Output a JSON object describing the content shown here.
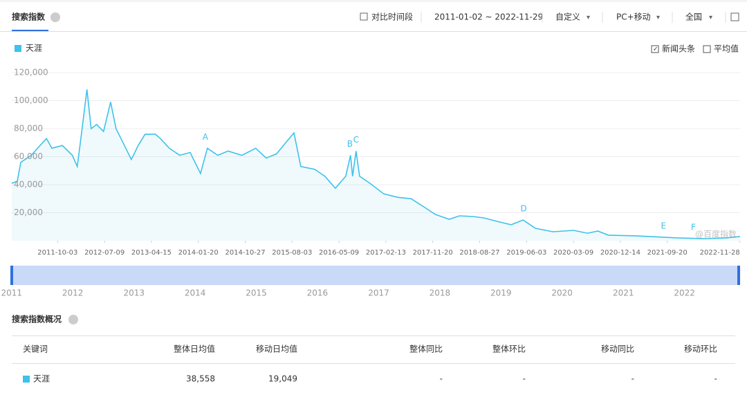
{
  "header": {
    "title": "搜索指数",
    "compare": "对比时间段",
    "date_range": "2011-01-02 ~ 2022-11-29",
    "custom": "自定义",
    "device": "PC+移动",
    "region": "全国"
  },
  "options": {
    "news": "新闻头条",
    "average": "平均值"
  },
  "chart_data": {
    "type": "line",
    "series": [
      {
        "name": "天涯",
        "color": "#3ec1ea",
        "x": [
          "2011-01-02",
          "2011-02-04",
          "2011-02-25",
          "2011-04-28",
          "2011-07-28",
          "2011-08-30",
          "2011-10-31",
          "2011-12-30",
          "2012-01-28",
          "2012-02-22",
          "2012-03-26",
          "2012-04-20",
          "2012-05-23",
          "2012-07-03",
          "2012-08-14",
          "2012-09-16",
          "2012-10-15",
          "2012-12-16",
          "2013-01-26",
          "2013-03-08",
          "2013-05-09",
          "2013-06-07",
          "2013-07-31",
          "2013-10-01",
          "2013-12-02",
          "2014-02-02",
          "2014-03-15",
          "2014-05-16",
          "2014-07-17",
          "2014-10-07",
          "2014-12-29",
          "2015-03-01",
          "2015-05-02",
          "2015-07-03",
          "2015-08-14",
          "2015-09-24",
          "2015-12-16",
          "2016-02-15",
          "2016-04-17",
          "2016-06-18",
          "2016-07-17",
          "2016-07-29",
          "2016-08-19",
          "2016-09-09",
          "2016-11-10",
          "2017-01-31",
          "2017-04-23",
          "2017-07-14",
          "2017-10-04",
          "2017-12-05",
          "2018-02-26",
          "2018-04-29",
          "2018-07-20",
          "2018-09-20",
          "2018-12-11",
          "2019-03-03",
          "2019-05-13",
          "2019-07-26",
          "2019-11-07",
          "2020-03-10",
          "2020-06-01",
          "2020-08-02",
          "2020-10-03",
          "2021-03-17",
          "2021-08-29",
          "2021-11-20",
          "2022-05-04",
          "2022-09-05",
          "2022-11-29"
        ],
        "values": [
          41000,
          42500,
          56000,
          61000,
          73000,
          66000,
          68000,
          61000,
          53000,
          76000,
          108000,
          80000,
          83000,
          78000,
          99000,
          80000,
          73000,
          58000,
          68000,
          76000,
          76000,
          73000,
          66000,
          61000,
          63000,
          48000,
          66000,
          61000,
          64000,
          61000,
          66000,
          59000,
          62000,
          71000,
          77000,
          53000,
          51000,
          46000,
          37500,
          46000,
          61000,
          46000,
          64000,
          46000,
          41000,
          33500,
          31000,
          30000,
          23700,
          18800,
          15300,
          17800,
          17300,
          16300,
          13800,
          11400,
          14800,
          8900,
          6400,
          7400,
          5400,
          6900,
          4000,
          3500,
          2500,
          2000,
          1500,
          2000,
          3000
        ]
      }
    ],
    "xlim": [
      "2011-01-02",
      "2022-11-29"
    ],
    "xticks": [
      "2011-10-03",
      "2012-07-09",
      "2013-04-15",
      "2014-01-20",
      "2014-10-27",
      "2015-08-03",
      "2016-05-09",
      "2017-02-13",
      "2017-11-20",
      "2018-08-27",
      "2019-06-03",
      "2020-03-09",
      "2020-12-14",
      "2021-09-20",
      "2022-11-28"
    ],
    "ylim": [
      0,
      120000
    ],
    "yticks": [
      {
        "value": 20000,
        "label": "20,000"
      },
      {
        "value": 40000,
        "label": "40,000"
      },
      {
        "value": 60000,
        "label": "60,000"
      },
      {
        "value": 80000,
        "label": "80,000"
      },
      {
        "value": 100000,
        "label": "100,000"
      },
      {
        "value": 120000,
        "label": "120,000"
      }
    ],
    "grid": true,
    "annotations": [
      {
        "label": "A",
        "x": "2014-03-03"
      },
      {
        "label": "B",
        "x": "2016-07-13"
      },
      {
        "label": "C",
        "x": "2016-08-19"
      },
      {
        "label": "D",
        "x": "2019-05-17"
      },
      {
        "label": "E",
        "x": "2021-08-29"
      },
      {
        "label": "F",
        "x": "2022-02-23"
      }
    ],
    "watermark": "@百度指数"
  },
  "slider": {
    "years": [
      2011,
      2012,
      2013,
      2014,
      2015,
      2016,
      2017,
      2018,
      2019,
      2020,
      2021,
      2022
    ]
  },
  "overview": {
    "title": "搜索指数概况",
    "columns": [
      "关键词",
      "整体日均值",
      "移动日均值",
      "整体同比",
      "整体环比",
      "移动同比",
      "移动环比"
    ],
    "rows": [
      [
        "天涯",
        "38,558",
        "19,049",
        "-",
        "-",
        "-",
        "-"
      ]
    ]
  }
}
